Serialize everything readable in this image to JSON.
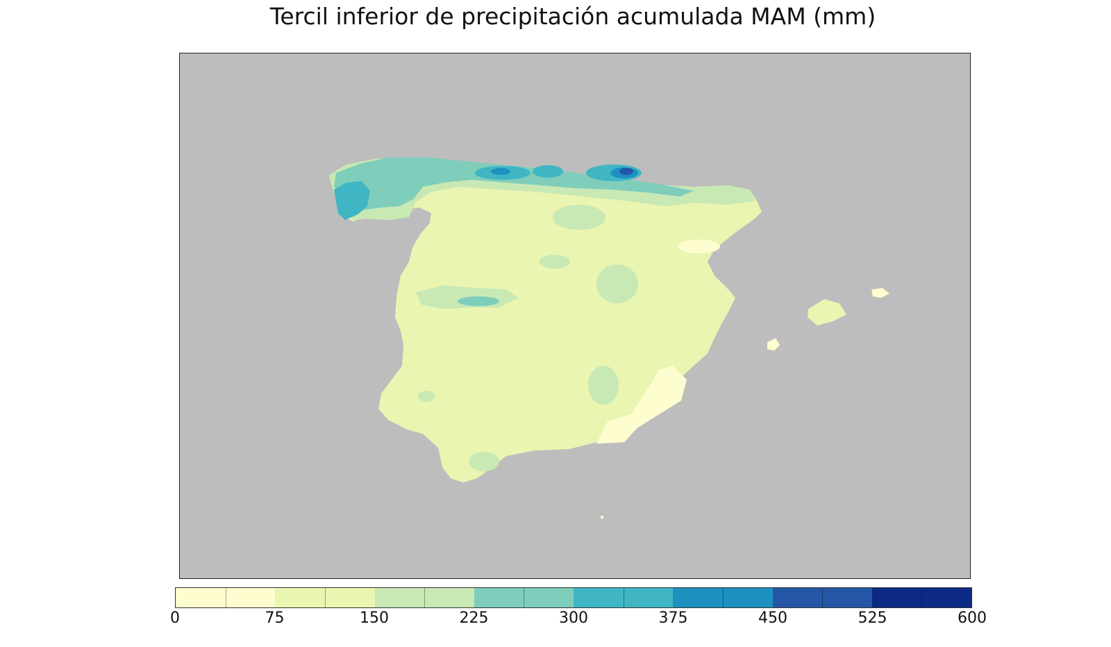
{
  "title": "Tercil inferior de precipitación acumulada MAM (mm)",
  "colorbar": {
    "ticks": [
      "0",
      "75",
      "150",
      "225",
      "300",
      "375",
      "450",
      "525",
      "600"
    ],
    "colors": [
      "#fefdd0",
      "#e9f5b1",
      "#c8e8b4",
      "#7fcdbb",
      "#40b6c4",
      "#1e90c0",
      "#2456a5",
      "#0c2a83"
    ]
  },
  "map": {
    "background_color": "#bdbdbd",
    "land_base_color": "#e9f5b1"
  }
}
